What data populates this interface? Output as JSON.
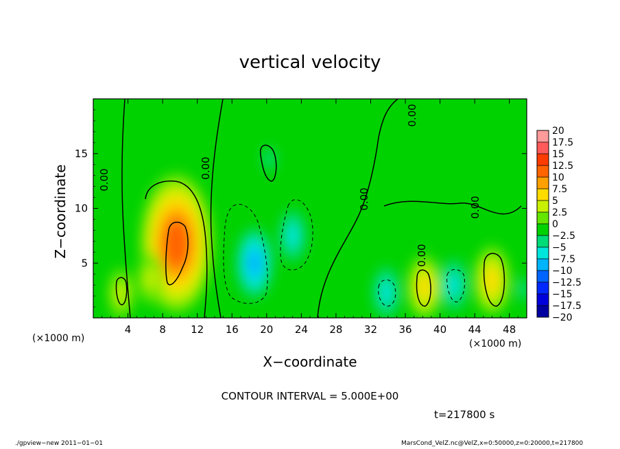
{
  "chart_data": {
    "type": "heatmap",
    "title": "vertical velocity",
    "xlabel": "X−coordinate",
    "ylabel": "Z−coordinate",
    "x_unit_label": "(×1000 m)",
    "xlim": [
      0,
      50
    ],
    "ylim": [
      0,
      20
    ],
    "x_ticks": [
      4,
      8,
      12,
      16,
      20,
      24,
      28,
      32,
      36,
      40,
      44,
      48
    ],
    "y_ticks": [
      5,
      10,
      15
    ],
    "contour_labels": [
      "0.00",
      "0.00",
      "0.00",
      "0.00",
      "0.00",
      "0.00"
    ],
    "colorbar": {
      "levels": [
        "20",
        "17.5",
        "15",
        "12.5",
        "10",
        "7.5",
        "5",
        "2.5",
        "0",
        "−2.5",
        "−5",
        "−7.5",
        "−10",
        "−12.5",
        "−15",
        "−17.5",
        "−20"
      ],
      "colors": [
        "#ff9b9b",
        "#ff5a5a",
        "#ff3c00",
        "#ff6400",
        "#ffa000",
        "#ffdc00",
        "#c8f000",
        "#64e600",
        "#00d200",
        "#00dc78",
        "#00e6dc",
        "#00b4ff",
        "#0064ff",
        "#0028ff",
        "#0000dc",
        "#0000a0",
        "#7800c8"
      ]
    },
    "features": [
      {
        "x": 9.6,
        "z": 6.8,
        "w": 12.5
      },
      {
        "x": 3.2,
        "z": 2.2,
        "w": 5.5
      },
      {
        "x": 6.6,
        "z": 3.6,
        "w": 6.0
      },
      {
        "x": 18.6,
        "z": 5.0,
        "w": -7.0
      },
      {
        "x": 23.0,
        "z": 7.5,
        "w": -5.0
      },
      {
        "x": 20.3,
        "z": 14.5,
        "w": -2.0
      },
      {
        "x": 33.8,
        "z": 2.3,
        "w": -4.5
      },
      {
        "x": 38.2,
        "z": 2.8,
        "w": 6.5
      },
      {
        "x": 41.6,
        "z": 3.0,
        "w": -6.0
      },
      {
        "x": 46.0,
        "z": 3.4,
        "w": 7.0
      },
      {
        "x": 49.6,
        "z": 2.6,
        "w": -3.5
      }
    ]
  },
  "contour_interval_text": "CONTOUR INTERVAL = 5.000E+00",
  "time_text": "t=217800 s",
  "footer_left": "./gpview−new  2011−01−01",
  "footer_right": "MarsCond_VelZ.nc@VelZ,x=0:50000,z=0:20000,t=217800"
}
